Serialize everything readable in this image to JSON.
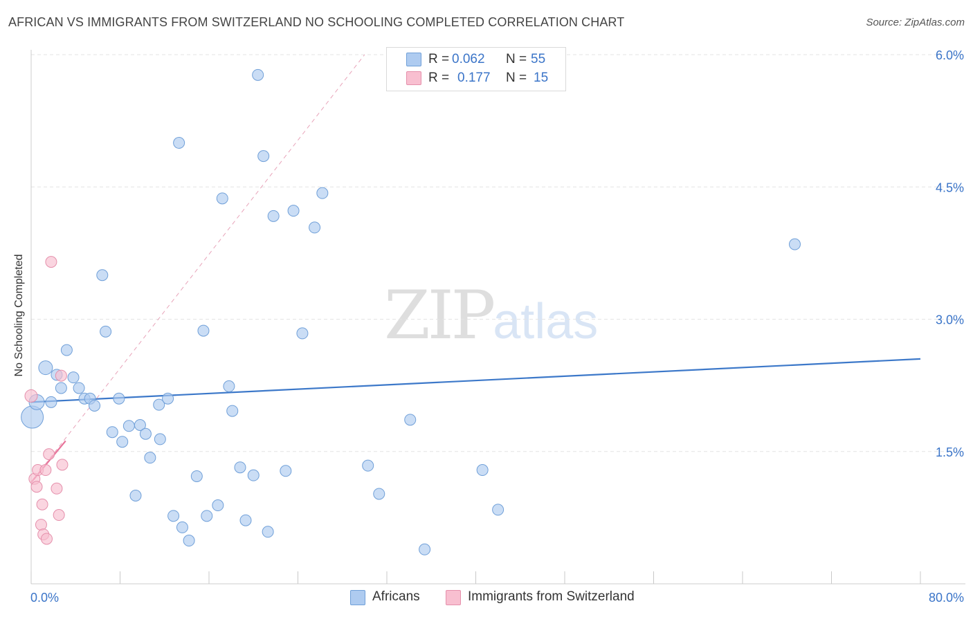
{
  "title": "AFRICAN VS IMMIGRANTS FROM SWITZERLAND NO SCHOOLING COMPLETED CORRELATION CHART",
  "source": "Source: ZipAtlas.com",
  "watermark": {
    "zip": "ZIP",
    "atlas": "atlas"
  },
  "legend": {
    "rows": [
      {
        "r_label": "R =",
        "r_value": "0.062",
        "n_label": "N =",
        "n_value": "55",
        "color": "#aecbf0"
      },
      {
        "r_label": "R =",
        "r_value": "0.177",
        "n_label": "N =",
        "n_value": "15",
        "color": "#f8bfd0"
      }
    ]
  },
  "bottom_legend": [
    {
      "label": "Africans",
      "color": "#aecbf0"
    },
    {
      "label": "Immigrants from Switzerland",
      "color": "#f8bfd0"
    }
  ],
  "chart_data": {
    "type": "scatter",
    "title": "AFRICAN VS IMMIGRANTS FROM SWITZERLAND NO SCHOOLING COMPLETED CORRELATION CHART",
    "xlabel": "",
    "ylabel": "No Schooling Completed",
    "xlim": [
      0,
      80
    ],
    "ylim": [
      0,
      6.3
    ],
    "x_tick_labels": [
      "0.0%",
      "80.0%"
    ],
    "y_ticks": [
      1.5,
      3.0,
      4.5,
      6.0
    ],
    "y_tick_labels": [
      "1.5%",
      "3.0%",
      "4.5%",
      "6.0%"
    ],
    "grid": "horizontal dashed",
    "legend_position": "top-center",
    "series": [
      {
        "name": "Africans",
        "color": "#aecbf0",
        "stroke": "#6f9fd8",
        "points": [
          [
            0.1,
            1.89,
            16
          ],
          [
            0.5,
            2.06,
            11
          ],
          [
            1.3,
            2.45,
            10
          ],
          [
            1.8,
            2.06,
            8
          ],
          [
            2.3,
            2.37,
            8
          ],
          [
            2.7,
            2.22,
            8
          ],
          [
            3.2,
            2.65,
            8
          ],
          [
            3.8,
            2.34,
            8
          ],
          [
            4.3,
            2.22,
            8
          ],
          [
            4.8,
            2.1,
            8
          ],
          [
            5.3,
            2.1,
            8
          ],
          [
            5.7,
            2.02,
            8
          ],
          [
            6.4,
            3.5,
            8
          ],
          [
            6.7,
            2.86,
            8
          ],
          [
            7.3,
            1.72,
            8
          ],
          [
            7.9,
            2.1,
            8
          ],
          [
            8.2,
            1.61,
            8
          ],
          [
            8.8,
            1.79,
            8
          ],
          [
            9.4,
            1.0,
            8
          ],
          [
            9.8,
            1.8,
            8
          ],
          [
            10.3,
            1.7,
            8
          ],
          [
            10.7,
            1.43,
            8
          ],
          [
            11.6,
            1.64,
            8
          ],
          [
            11.5,
            2.03,
            8
          ],
          [
            12.3,
            2.1,
            8
          ],
          [
            12.8,
            0.77,
            8
          ],
          [
            13.3,
            5.0,
            8
          ],
          [
            13.6,
            0.64,
            8
          ],
          [
            14.2,
            0.49,
            8
          ],
          [
            14.9,
            1.22,
            8
          ],
          [
            15.5,
            2.87,
            8
          ],
          [
            15.8,
            0.77,
            8
          ],
          [
            16.8,
            0.89,
            8
          ],
          [
            17.2,
            4.37,
            8
          ],
          [
            17.8,
            2.24,
            8
          ],
          [
            18.1,
            1.96,
            8
          ],
          [
            18.8,
            1.32,
            8
          ],
          [
            19.3,
            0.72,
            8
          ],
          [
            20.0,
            1.23,
            8
          ],
          [
            20.4,
            5.77,
            8
          ],
          [
            20.9,
            4.85,
            8
          ],
          [
            21.3,
            0.59,
            8
          ],
          [
            21.8,
            4.17,
            8
          ],
          [
            22.9,
            1.28,
            8
          ],
          [
            23.6,
            4.23,
            8
          ],
          [
            24.4,
            2.84,
            8
          ],
          [
            25.5,
            4.04,
            8
          ],
          [
            26.2,
            4.43,
            8
          ],
          [
            30.3,
            1.34,
            8
          ],
          [
            31.3,
            1.02,
            8
          ],
          [
            34.1,
            1.86,
            8
          ],
          [
            35.4,
            0.39,
            8
          ],
          [
            40.6,
            1.29,
            8
          ],
          [
            42.0,
            0.84,
            8
          ],
          [
            68.7,
            3.85,
            8
          ]
        ]
      },
      {
        "name": "Immigrants from Switzerland",
        "color": "#f8bfd0",
        "stroke": "#e58fab",
        "points": [
          [
            0.0,
            2.13,
            9
          ],
          [
            0.3,
            1.19,
            8
          ],
          [
            0.5,
            1.1,
            8
          ],
          [
            0.6,
            1.29,
            8
          ],
          [
            0.9,
            0.67,
            8
          ],
          [
            1.0,
            0.9,
            8
          ],
          [
            1.1,
            0.56,
            8
          ],
          [
            1.3,
            1.29,
            8
          ],
          [
            1.4,
            0.51,
            8
          ],
          [
            1.6,
            1.47,
            8
          ],
          [
            1.8,
            3.65,
            8
          ],
          [
            2.3,
            1.08,
            8
          ],
          [
            2.5,
            0.78,
            8
          ],
          [
            2.7,
            2.36,
            8
          ],
          [
            2.8,
            1.35,
            8
          ]
        ]
      }
    ],
    "trend_lines": [
      {
        "series": "Africans",
        "from": [
          0,
          2.06
        ],
        "to": [
          80,
          2.55
        ],
        "color": "#3c78c9",
        "style": "solid"
      },
      {
        "series": "Immigrants from Switzerland",
        "from": [
          0,
          1.15
        ],
        "to": [
          3.1,
          1.62
        ],
        "color": "#e8739a",
        "style": "solid"
      },
      {
        "series": "Immigrants from Switzerland",
        "from": [
          0,
          1.15
        ],
        "to": [
          30,
          6.0
        ],
        "color": "#e8a3b9",
        "style": "dashed"
      }
    ]
  }
}
